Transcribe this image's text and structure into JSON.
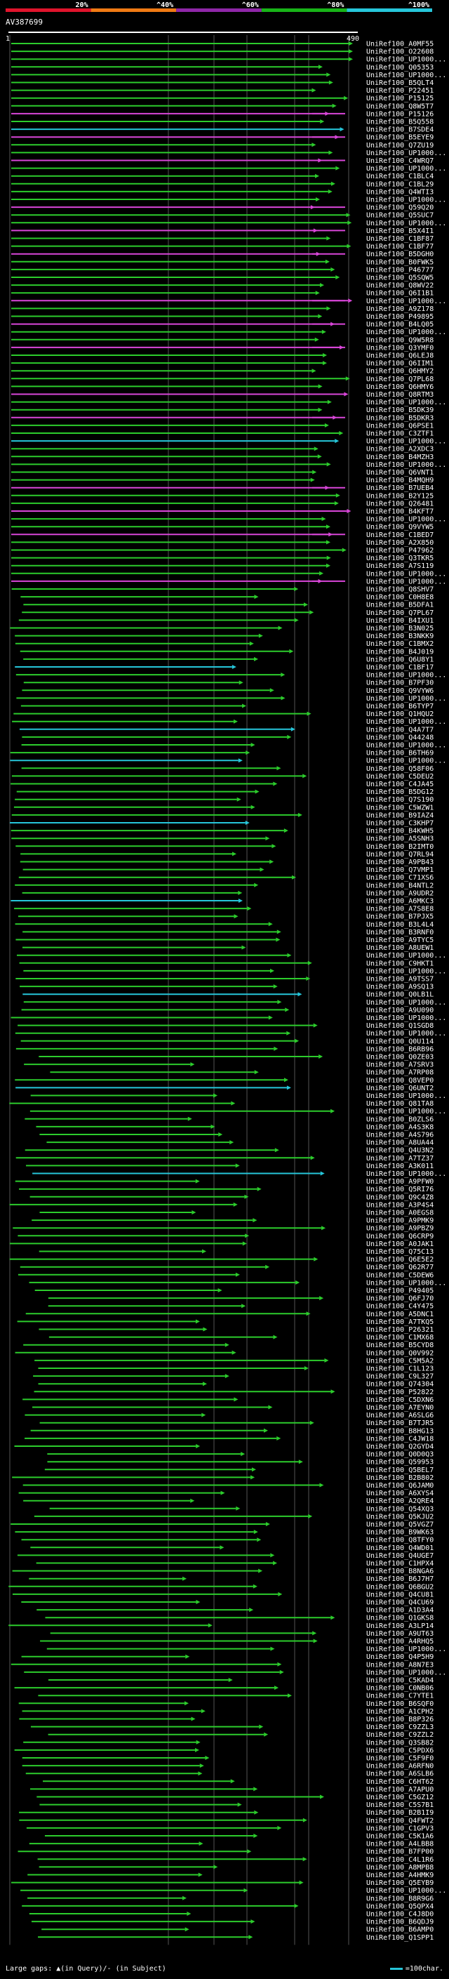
{
  "scale": {
    "ticks": [
      "20%",
      "^40%",
      "^60%",
      "^80%",
      "^100%"
    ],
    "colors": [
      "#e0142c",
      "#f07a14",
      "#8f27a8",
      "#18b418",
      "#26c6da"
    ]
  },
  "query": {
    "title": "AV387699",
    "start": "1",
    "end": "490"
  },
  "hit_labels": [
    "UniRef100_A0MF55",
    "UniRef100_O22608",
    "UniRef100_UP1000...",
    "UniRef100_Q05353",
    "UniRef100_UP1000...",
    "UniRef100_B5QLT4",
    "UniRef100_P22451",
    "UniRef100_P15125",
    "UniRef100_Q8W5T7",
    "UniRef100_P15126",
    "UniRef100_B5Q558",
    "UniRef100_B7SDE4",
    "UniRef100_B5EYE9",
    "UniRef100_Q7ZU19",
    "UniRef100_UP1000...",
    "UniRef100_C4WRQ7",
    "UniRef100_UP1000...",
    "UniRef100_C1BLC4",
    "UniRef100_C1BL29",
    "UniRef100_Q4WTI3",
    "UniRef100_UP1000...",
    "UniRef100_Q59Q20",
    "UniRef100_Q5SUC7",
    "UniRef100_UP1000...",
    "UniRef100_B5X4I1",
    "UniRef100_C1BF87",
    "UniRef100_C1BF77",
    "UniRef100_B5DGH0",
    "UniRef100_B0FWK5",
    "UniRef100_P46777",
    "UniRef100_Q5SQW5",
    "UniRef100_Q8WV22",
    "UniRef100_Q6I1B1",
    "UniRef100_UP1000...",
    "UniRef100_A9Z178",
    "UniRef100_P49895",
    "UniRef100_B4LQ05",
    "UniRef100_UP1000...",
    "UniRef100_Q9W5R8",
    "UniRef100_Q3YMF0",
    "UniRef100_Q6LEJ8",
    "UniRef100_Q6IIM1",
    "UniRef100_Q6HMY2",
    "UniRef100_Q7PL68",
    "UniRef100_Q6HMY6",
    "UniRef100_Q8RTM3",
    "UniRef100_UP1000...",
    "UniRef100_B5DK39",
    "UniRef100_B5DKR3",
    "UniRef100_Q6PSE1",
    "UniRef100_C3ZTF1",
    "UniRef100_UP1000...",
    "UniRef100_A2XDC3",
    "UniRef100_B4MZH3",
    "UniRef100_UP1000...",
    "UniRef100_Q6VNT1",
    "UniRef100_B4MQH9",
    "UniRef100_B7UEB4",
    "UniRef100_B2Y125",
    "UniRef100_Q26481",
    "UniRef100_B4KFT7",
    "UniRef100_UP1000...",
    "UniRef100_Q9VYW5",
    "UniRef100_C1BED7",
    "UniRef100_A2X850",
    "UniRef100_P47962",
    "UniRef100_Q3TKR5",
    "UniRef100_A7S119",
    "UniRef100_UP1000...",
    "UniRef100_UP1000...",
    "UniRef100_Q8SHV7",
    "UniRef100_C0H8E8",
    "UniRef100_B5DFA1",
    "UniRef100_Q7PL67",
    "UniRef100_B4IXU1",
    "UniRef100_B3N025",
    "UniRef100_B3NKK9",
    "UniRef100_C1BMX2",
    "UniRef100_B4J019",
    "UniRef100_Q6U8Y1",
    "UniRef100_C1BF17",
    "UniRef100_UP1000...",
    "UniRef100_B7PF30",
    "UniRef100_Q9VYW6",
    "UniRef100_UP1000...",
    "UniRef100_B6TYP7",
    "UniRef100_Q1HQU2",
    "UniRef100_UP1000...",
    "UniRef100_Q4A7T7",
    "UniRef100_Q44248",
    "UniRef100_UP1000...",
    "UniRef100_B6TH69",
    "UniRef100_UP1000...",
    "UniRef100_Q58F06",
    "UniRef100_C5DEU2",
    "UniRef100_C4JA45",
    "UniRef100_B5DG12",
    "UniRef100_Q7S190",
    "UniRef100_C5WZW1",
    "UniRef100_B9IAZ4",
    "UniRef100_C3KHP7",
    "UniRef100_B4KWH5",
    "UniRef100_A5SNH3",
    "UniRef100_B2IMT0",
    "UniRef100_Q7RL94",
    "UniRef100_A9PB43",
    "UniRef100_Q7VMP1",
    "UniRef100_C71XS6",
    "UniRef100_B4NTL2",
    "UniRef100_A9UDR2",
    "UniRef100_A6MKC3",
    "UniRef100_A7S8E8",
    "UniRef100_B7PJX5",
    "UniRef100_B3L4L4",
    "UniRef100_B3RNF0",
    "UniRef100_A9TYC5",
    "UniRef100_A8UEW1",
    "UniRef100_UP1000...",
    "UniRef100_C9HKT1",
    "UniRef100_UP1000...",
    "UniRef100_A9TSS7",
    "UniRef100_A9SQ13",
    "UniRef100_Q0LB1L",
    "UniRef100_UP1000...",
    "UniRef100_A9U090",
    "UniRef100_UP1000...",
    "UniRef100_Q1SGD8",
    "UniRef100_UP1000...",
    "UniRef100_Q0U114",
    "UniRef100_B6RB96",
    "UniRef100_Q0ZE03",
    "UniRef100_A7SRV3",
    "UniRef100_A7RP08",
    "UniRef100_Q8VEP0",
    "UniRef100_Q6UNT2",
    "UniRef100_UP1000...",
    "UniRef100_Q81TA8",
    "UniRef100_UP1000...",
    "UniRef100_B0ZLS6",
    "UniRef100_A4S3K8",
    "UniRef100_A4S796",
    "UniRef100_A8UA44",
    "UniRef100_Q4U3N2",
    "UniRef100_A7TZ37",
    "UniRef100_A3K011",
    "UniRef100_UP1000...",
    "UniRef100_A9PFW0",
    "UniRef100_Q5RI76",
    "UniRef100_Q9C4Z8",
    "UniRef100_A3P4S4",
    "UniRef100_A0EGS8",
    "UniRef100_A9PMK9",
    "UniRef100_A9PBZ9",
    "UniRef100_Q6CRP9",
    "UniRef100_A0JAK1",
    "UniRef100_Q75C13",
    "UniRef100_Q6E5E2",
    "UniRef100_Q62R77",
    "UniRef100_C5DEW6",
    "UniRef100_UP1000...",
    "UniRef100_P49405",
    "UniRef100_Q6FJ70",
    "UniRef100_C4Y475",
    "UniRef100_A5DNC1",
    "UniRef100_A7TKQ5",
    "UniRef100_P26321",
    "UniRef100_C1MX68",
    "UniRef100_B5CYD8",
    "UniRef100_Q0V992",
    "UniRef100_C5M5A2",
    "UniRef100_C1L123",
    "UniRef100_C9L327",
    "UniRef100_Q74304",
    "UniRef100_P52822",
    "UniRef100_C5DXN6",
    "UniRef100_A7EYN0",
    "UniRef100_A6SLG6",
    "UniRef100_B7TJR5",
    "UniRef100_B8HG13",
    "UniRef100_C4JW18",
    "UniRef100_Q2GYD4",
    "UniRef100_Q0D0Q3",
    "UniRef100_Q59953",
    "UniRef100_Q5BEL7",
    "UniRef100_B2B802",
    "UniRef100_Q6JAM0",
    "UniRef100_A6XYS4",
    "UniRef100_A2QRE4",
    "UniRef100_Q54XQ3",
    "UniRef100_Q5KJU2",
    "UniRef100_Q5VGZ7",
    "UniRef100_B9WK63",
    "UniRef100_Q8TFY0",
    "UniRef100_Q4WD01",
    "UniRef100_Q4UGE7",
    "UniRef100_C1HPX4",
    "UniRef100_B8NGA6",
    "UniRef100_B6J7H7",
    "UniRef100_Q6BGU2",
    "UniRef100_Q4CU81",
    "UniRef100_Q4CU69",
    "UniRef100_A1D3A4",
    "UniRef100_Q1GKS8",
    "UniRef100_A3LP14",
    "UniRef100_A9UT63",
    "UniRef100_A4RHQ5",
    "UniRef100_UP1000...",
    "UniRef100_Q4P5H9",
    "UniRef100_A8N7E3",
    "UniRef100_UP1000...",
    "UniRef100_C5KAD4",
    "UniRef100_C0NB06",
    "UniRef100_C7YTE1",
    "UniRef100_B6SQF0",
    "UniRef100_A1CPH2",
    "UniRef100_B8P326",
    "UniRef100_C9ZZL3",
    "UniRef100_C9ZZL2",
    "UniRef100_Q3SB82",
    "UniRef100_C5PDX6",
    "UniRef100_C5F9F0",
    "UniRef100_A6RFN0",
    "UniRef100_A6SLB6",
    "UniRef100_C6HT62",
    "UniRef100_A7APU0",
    "UniRef100_C5GZ12",
    "UniRef100_C5S7B1",
    "UniRef100_B2B1I9",
    "UniRef100_Q4FWT2",
    "UniRef100_C1GPV3",
    "UniRef100_C5K1A6",
    "UniRef100_A4LBB8",
    "UniRef100_B7FP00",
    "UniRef100_C4L1R6",
    "UniRef100_A8MPB8",
    "UniRef100_A4HMK9",
    "UniRef100_Q5EYB9",
    "UniRef100_UP1000...",
    "UniRef100_B8R9G6",
    "UniRef100_Q5QPX4",
    "UniRef100_C4J8D0",
    "UniRef100_B6QDJ9",
    "UniRef100_B6AMP0",
    "UniRef100_Q1SPP1"
  ],
  "footer": {
    "gaps_prefix": "Large gaps:",
    "gaps_glyph": "▲",
    "gaps_text": "(in Query)/- (in Subject)",
    "legend_text": "=100char."
  },
  "colors": {
    "background": "#000000",
    "hit_green": "#2ccc2c",
    "hit_cyan": "#26c6da",
    "hit_magenta": "#d946d9",
    "guide_line": "#ffffff",
    "text": "#ffffff"
  }
}
